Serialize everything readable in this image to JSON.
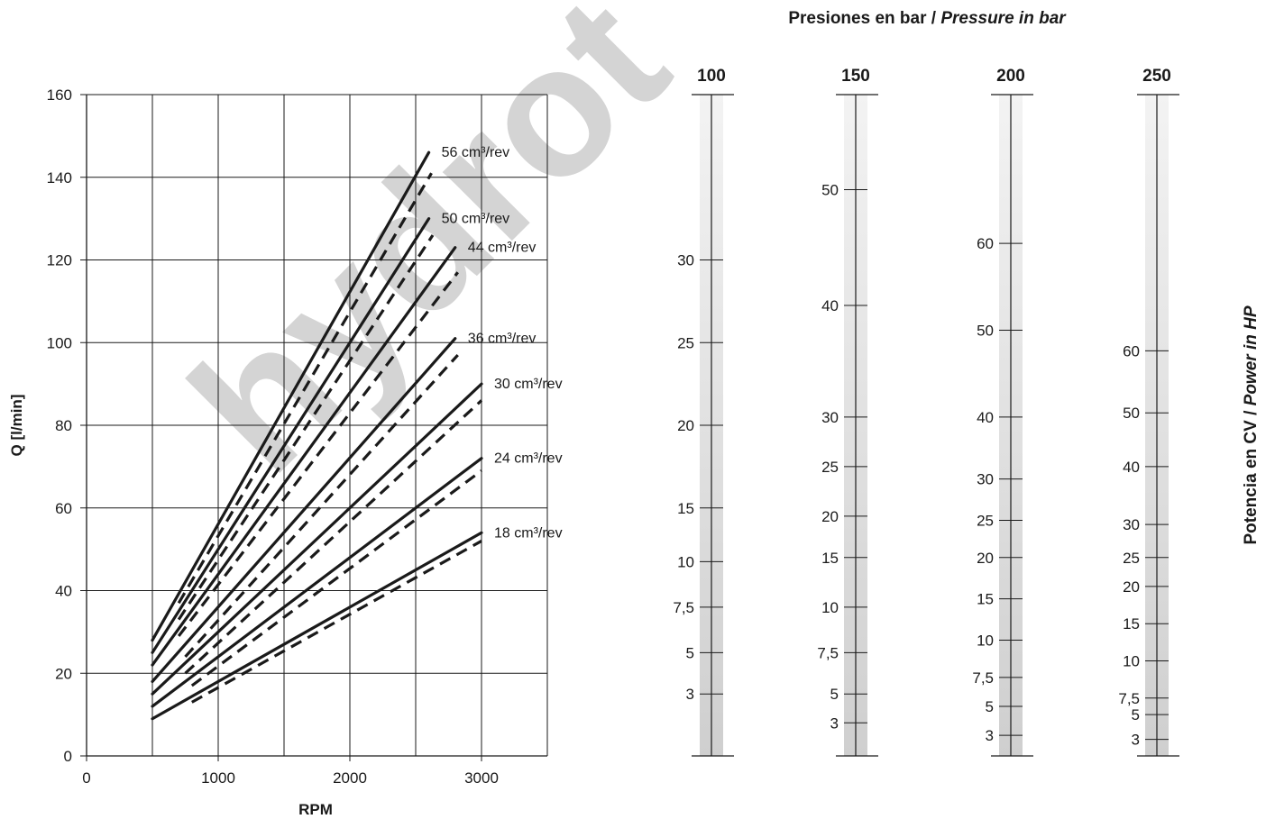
{
  "chart_data": [
    {
      "type": "line",
      "xlabel": "RPM",
      "ylabel": "Q [l/min]",
      "xlim": [
        0,
        3500
      ],
      "ylim": [
        0,
        160
      ],
      "x_ticks": [
        0,
        1000,
        2000,
        3000
      ],
      "y_ticks": [
        0,
        20,
        40,
        60,
        80,
        100,
        120,
        140,
        160
      ],
      "grid": true,
      "series": [
        {
          "name": "56 cm³/rev",
          "solid": [
            [
              500,
              28
            ],
            [
              2600,
              146
            ]
          ],
          "dashed": [
            [
              700,
              37
            ],
            [
              2620,
              141
            ]
          ]
        },
        {
          "name": "50 cm³/rev",
          "solid": [
            [
              500,
              25
            ],
            [
              2600,
              130
            ]
          ],
          "dashed": [
            [
              700,
              33
            ],
            [
              2630,
              126
            ]
          ]
        },
        {
          "name": "44 cm³/rev",
          "solid": [
            [
              500,
              22
            ],
            [
              2800,
              123
            ]
          ],
          "dashed": [
            [
              700,
              29
            ],
            [
              2820,
              117
            ]
          ]
        },
        {
          "name": "36 cm³/rev",
          "solid": [
            [
              500,
              18
            ],
            [
              2800,
              101
            ]
          ],
          "dashed": [
            [
              750,
              24
            ],
            [
              2820,
              97
            ]
          ]
        },
        {
          "name": "30 cm³/rev",
          "solid": [
            [
              500,
              15
            ],
            [
              3000,
              90
            ]
          ],
          "dashed": [
            [
              750,
              20
            ],
            [
              3000,
              86
            ]
          ]
        },
        {
          "name": "24 cm³/rev",
          "solid": [
            [
              500,
              12
            ],
            [
              3000,
              72
            ]
          ],
          "dashed": [
            [
              800,
              17
            ],
            [
              3000,
              69
            ]
          ]
        },
        {
          "name": "18 cm³/rev",
          "solid": [
            [
              500,
              9
            ],
            [
              3000,
              54
            ]
          ],
          "dashed": [
            [
              800,
              13
            ],
            [
              3000,
              52
            ]
          ]
        }
      ]
    },
    {
      "type": "other",
      "title": "Presiones en bar / Pressure in bar",
      "title_plain": "Presiones en bar / ",
      "title_italic": "Pressure in bar",
      "ylabel": "Potencia en CV / Power in HP",
      "ylabel_plain": "Potencia en CV / ",
      "ylabel_italic": "Power in HP",
      "scales": [
        {
          "pressure": "100",
          "ticks": [
            {
              "label": "30",
              "q": 120
            },
            {
              "label": "25",
              "q": 100
            },
            {
              "label": "20",
              "q": 80
            },
            {
              "label": "15",
              "q": 60
            },
            {
              "label": "10",
              "q": 47
            },
            {
              "label": "7,5",
              "q": 36
            },
            {
              "label": "5",
              "q": 25
            },
            {
              "label": "3",
              "q": 15
            }
          ]
        },
        {
          "pressure": "150",
          "ticks": [
            {
              "label": "50",
              "q": 137
            },
            {
              "label": "40",
              "q": 109
            },
            {
              "label": "30",
              "q": 82
            },
            {
              "label": "25",
              "q": 70
            },
            {
              "label": "20",
              "q": 58
            },
            {
              "label": "15",
              "q": 48
            },
            {
              "label": "10",
              "q": 36
            },
            {
              "label": "7,5",
              "q": 25
            },
            {
              "label": "5",
              "q": 15
            },
            {
              "label": "3",
              "q": 8
            }
          ]
        },
        {
          "pressure": "200",
          "ticks": [
            {
              "label": "60",
              "q": 124
            },
            {
              "label": "50",
              "q": 103
            },
            {
              "label": "40",
              "q": 82
            },
            {
              "label": "30",
              "q": 67
            },
            {
              "label": "25",
              "q": 57
            },
            {
              "label": "20",
              "q": 48
            },
            {
              "label": "15",
              "q": 38
            },
            {
              "label": "10",
              "q": 28
            },
            {
              "label": "7,5",
              "q": 19
            },
            {
              "label": "5",
              "q": 12
            },
            {
              "label": "3",
              "q": 5
            }
          ]
        },
        {
          "pressure": "250",
          "ticks": [
            {
              "label": "60",
              "q": 98
            },
            {
              "label": "50",
              "q": 83
            },
            {
              "label": "40",
              "q": 70
            },
            {
              "label": "30",
              "q": 56
            },
            {
              "label": "25",
              "q": 48
            },
            {
              "label": "20",
              "q": 41
            },
            {
              "label": "15",
              "q": 32
            },
            {
              "label": "10",
              "q": 23
            },
            {
              "label": "7,5",
              "q": 14
            },
            {
              "label": "5",
              "q": 10
            },
            {
              "label": "3",
              "q": 4
            }
          ]
        }
      ]
    }
  ],
  "watermark": "hydrot"
}
